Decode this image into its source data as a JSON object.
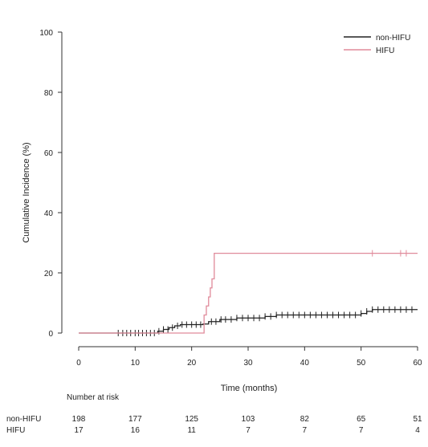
{
  "chart_data": {
    "type": "line",
    "title": "",
    "xlabel": "Time (months)",
    "ylabel": "Cumulative Incidence (%)",
    "xlim": [
      0,
      60
    ],
    "ylim": [
      0,
      100
    ],
    "x_ticks": [
      "0",
      "10",
      "20",
      "30",
      "40",
      "50",
      "60"
    ],
    "y_ticks": [
      "0",
      "20",
      "40",
      "60",
      "80",
      "100"
    ],
    "grid": false,
    "legend_position": "top-right",
    "series": [
      {
        "name": "non-HIFU",
        "color": "#222222",
        "steps": [
          [
            0,
            0
          ],
          [
            14,
            0.6
          ],
          [
            15,
            1.2
          ],
          [
            16,
            1.8
          ],
          [
            17,
            2.4
          ],
          [
            18,
            2.8
          ],
          [
            22,
            3.0
          ],
          [
            23,
            3.8
          ],
          [
            25,
            4.5
          ],
          [
            28,
            5.0
          ],
          [
            33,
            5.5
          ],
          [
            35,
            6.0
          ],
          [
            50,
            6.5
          ],
          [
            51,
            7.2
          ],
          [
            52,
            7.8
          ],
          [
            60,
            7.8
          ]
        ],
        "censors": [
          7,
          7.8,
          8.5,
          9.2,
          10,
          10.6,
          11.3,
          12,
          12.7,
          13.4,
          14.2,
          15,
          15.8,
          16.6,
          17.5,
          18.3,
          19.1,
          20,
          20.8,
          21.6,
          23.5,
          24.3,
          25.2,
          26,
          27,
          28,
          29,
          30,
          31,
          32,
          33,
          34,
          35,
          36,
          37,
          38,
          39,
          40,
          41,
          42,
          43,
          44,
          45,
          46,
          47,
          48,
          49,
          50,
          51,
          52,
          53,
          54,
          55,
          56,
          57,
          58,
          59
        ]
      },
      {
        "name": "HIFU",
        "color": "#e08a9a",
        "steps": [
          [
            0,
            0
          ],
          [
            22.2,
            6
          ],
          [
            22.6,
            9
          ],
          [
            23,
            12
          ],
          [
            23.3,
            15
          ],
          [
            23.6,
            18
          ],
          [
            24,
            26.5
          ],
          [
            60,
            26.5
          ]
        ],
        "censors": [
          52,
          57,
          58
        ]
      }
    ],
    "risk_table": {
      "header": "Number at risk",
      "times": [
        0,
        10,
        20,
        30,
        40,
        50,
        60
      ],
      "rows": [
        {
          "label": "non-HIFU",
          "values": [
            "198",
            "177",
            "125",
            "103",
            "82",
            "65",
            "51"
          ]
        },
        {
          "label": "HIFU",
          "values": [
            "17",
            "16",
            "11",
            "7",
            "7",
            "7",
            "4"
          ]
        }
      ]
    }
  }
}
